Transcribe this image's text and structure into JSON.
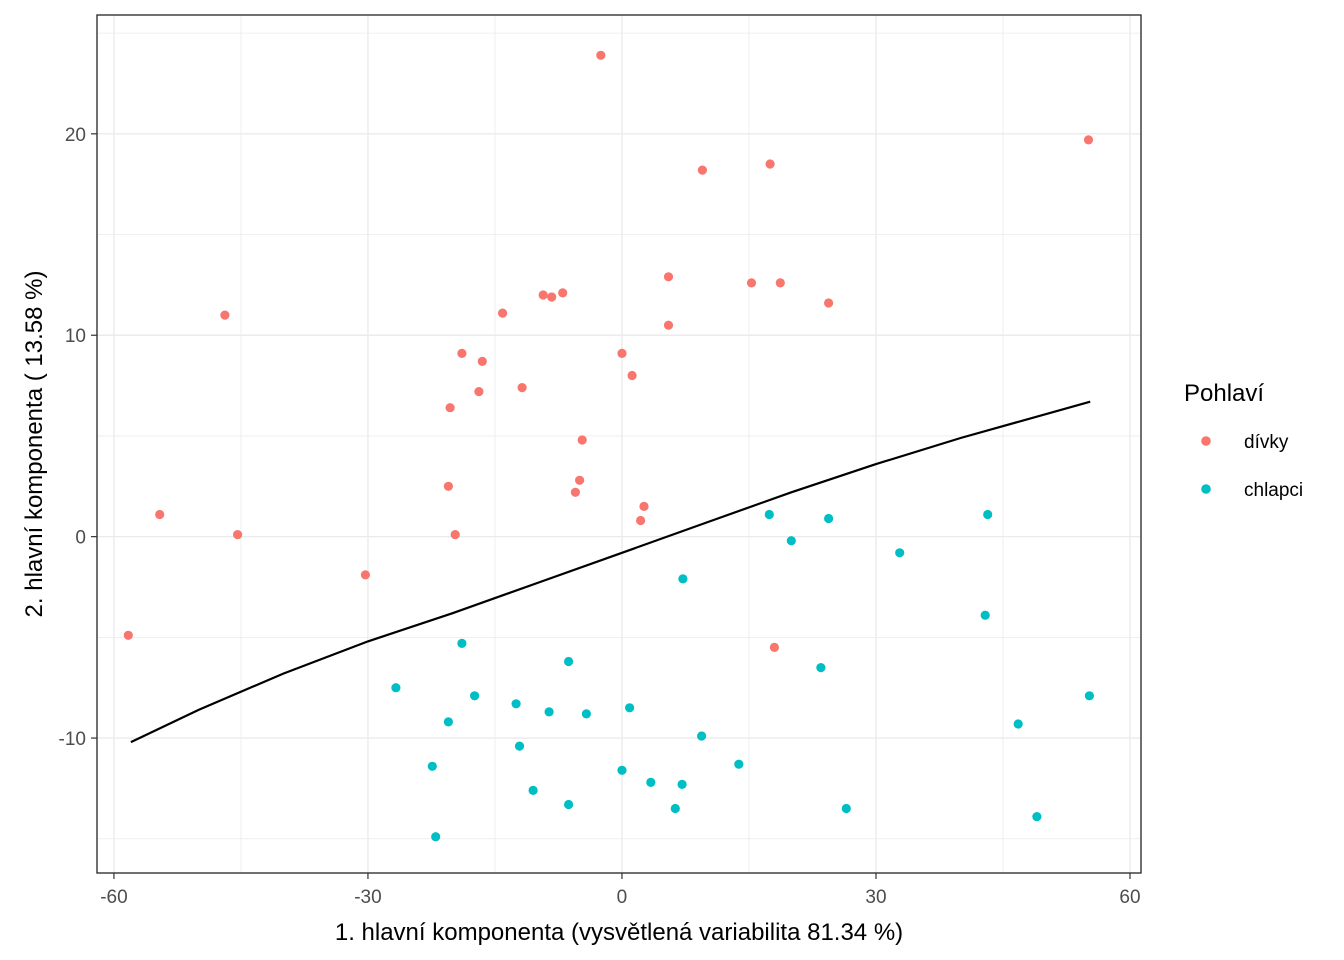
{
  "chart_data": {
    "type": "scatter",
    "xlabel": "1. hlavní komponenta (vysvětlená variabilita 81.34 %)",
    "ylabel": "2. hlavní komponenta ( 13.58 %)",
    "xlim": [
      -62,
      61.3
    ],
    "ylim": [
      -16.7,
      25.9
    ],
    "x_ticks": [
      -60,
      -30,
      0,
      30,
      60
    ],
    "x_tick_labels": [
      "-60",
      "-30",
      "0",
      "30",
      "60"
    ],
    "y_ticks": [
      -10,
      0,
      10,
      20
    ],
    "y_tick_labels": [
      "-10",
      "0",
      "10",
      "20"
    ],
    "grid": true,
    "legend": {
      "title": "Pohlaví",
      "position": "right",
      "entries": [
        {
          "label": "dívky",
          "color": "#F8766D"
        },
        {
          "label": "chlapci",
          "color": "#00BFC4"
        }
      ]
    },
    "series": [
      {
        "name": "dívky",
        "color": "#F8766D",
        "points": [
          [
            -2.5,
            23.9
          ],
          [
            55.1,
            19.7
          ],
          [
            9.5,
            18.2
          ],
          [
            17.5,
            18.5
          ],
          [
            5.5,
            12.9
          ],
          [
            15.3,
            12.6
          ],
          [
            18.7,
            12.6
          ],
          [
            24.4,
            11.6
          ],
          [
            -9.3,
            12.0
          ],
          [
            -8.3,
            11.9
          ],
          [
            -7.0,
            12.1
          ],
          [
            -14.1,
            11.1
          ],
          [
            -46.9,
            11.0
          ],
          [
            5.5,
            10.5
          ],
          [
            0.0,
            9.1
          ],
          [
            -18.9,
            9.1
          ],
          [
            -16.5,
            8.7
          ],
          [
            1.2,
            8.0
          ],
          [
            -11.8,
            7.4
          ],
          [
            -16.9,
            7.2
          ],
          [
            -20.3,
            6.4
          ],
          [
            -4.7,
            4.8
          ],
          [
            -5.0,
            2.8
          ],
          [
            -5.5,
            2.2
          ],
          [
            -20.5,
            2.5
          ],
          [
            -54.6,
            1.1
          ],
          [
            2.6,
            1.5
          ],
          [
            2.2,
            0.8
          ],
          [
            -45.4,
            0.1
          ],
          [
            -19.7,
            0.1
          ],
          [
            -30.3,
            -1.9
          ],
          [
            -58.3,
            -4.9
          ],
          [
            18.0,
            -5.5
          ]
        ]
      },
      {
        "name": "chlapci",
        "color": "#00BFC4",
        "points": [
          [
            17.4,
            1.1
          ],
          [
            24.4,
            0.9
          ],
          [
            43.2,
            1.1
          ],
          [
            20.0,
            -0.2
          ],
          [
            32.8,
            -0.8
          ],
          [
            7.2,
            -2.1
          ],
          [
            42.9,
            -3.9
          ],
          [
            -18.9,
            -5.3
          ],
          [
            -6.3,
            -6.2
          ],
          [
            23.5,
            -6.5
          ],
          [
            -26.7,
            -7.5
          ],
          [
            -17.4,
            -7.9
          ],
          [
            55.2,
            -7.9
          ],
          [
            -12.5,
            -8.3
          ],
          [
            0.9,
            -8.5
          ],
          [
            -8.6,
            -8.7
          ],
          [
            -4.2,
            -8.8
          ],
          [
            -20.5,
            -9.2
          ],
          [
            46.8,
            -9.3
          ],
          [
            9.4,
            -9.9
          ],
          [
            -12.1,
            -10.4
          ],
          [
            -22.4,
            -11.4
          ],
          [
            13.8,
            -11.3
          ],
          [
            0.0,
            -11.6
          ],
          [
            3.4,
            -12.2
          ],
          [
            7.1,
            -12.3
          ],
          [
            -10.5,
            -12.6
          ],
          [
            -6.3,
            -13.3
          ],
          [
            6.3,
            -13.5
          ],
          [
            26.5,
            -13.5
          ],
          [
            49.0,
            -13.9
          ],
          [
            -22.0,
            -14.9
          ]
        ]
      }
    ],
    "curve": {
      "name": "decision-boundary",
      "color": "#000000",
      "points": [
        [
          -58.0,
          -10.2
        ],
        [
          -50.0,
          -8.6
        ],
        [
          -40.0,
          -6.8
        ],
        [
          -30.0,
          -5.2
        ],
        [
          -20.0,
          -3.8
        ],
        [
          -10.0,
          -2.3
        ],
        [
          0.0,
          -0.8
        ],
        [
          10.0,
          0.7
        ],
        [
          20.0,
          2.2
        ],
        [
          30.0,
          3.6
        ],
        [
          40.0,
          4.9
        ],
        [
          55.3,
          6.7
        ]
      ]
    }
  }
}
